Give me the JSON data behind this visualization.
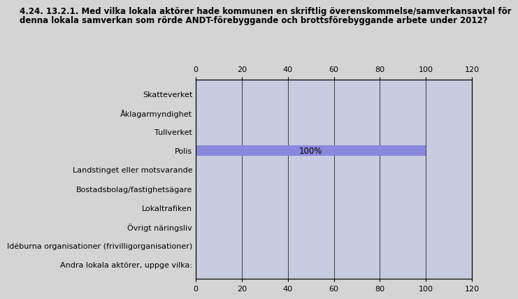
{
  "title_line1": "4.24. 13.2.1. Med vilka lokala aktörer hade kommunen en skriftlig överenskommelse/samverkansavtal för",
  "title_line2": "denna lokala samverkan som rörde ANDT-förebyggande och brottsförebyggande arbete under 2012?",
  "categories": [
    "Skatteverket",
    "Åklagarmyndighet",
    "Tullverket",
    "Polis",
    "Landstinget eller motsvarande",
    "Bostadsbolag/fastighetsägare",
    "Lokaltrafiken",
    "Övrigt näringsliv",
    "Idéburna organisationer (frivilligorganisationer)",
    "Andra lokala aktörer, uppge vilka:"
  ],
  "values": [
    0,
    0,
    0,
    100,
    0,
    0,
    0,
    0,
    0,
    0
  ],
  "bar_color_highlight": "#8888dd",
  "plot_bg_color": "#c8cce0",
  "highlight_index": 3,
  "label_text": "100%",
  "xlim": [
    0,
    120
  ],
  "xticks": [
    0,
    20,
    40,
    60,
    80,
    100,
    120
  ],
  "outer_bg_color": "#d4d4d4",
  "title_fontsize": 8.5,
  "tick_fontsize": 8,
  "label_fontsize": 8.5,
  "bar_height": 0.55
}
